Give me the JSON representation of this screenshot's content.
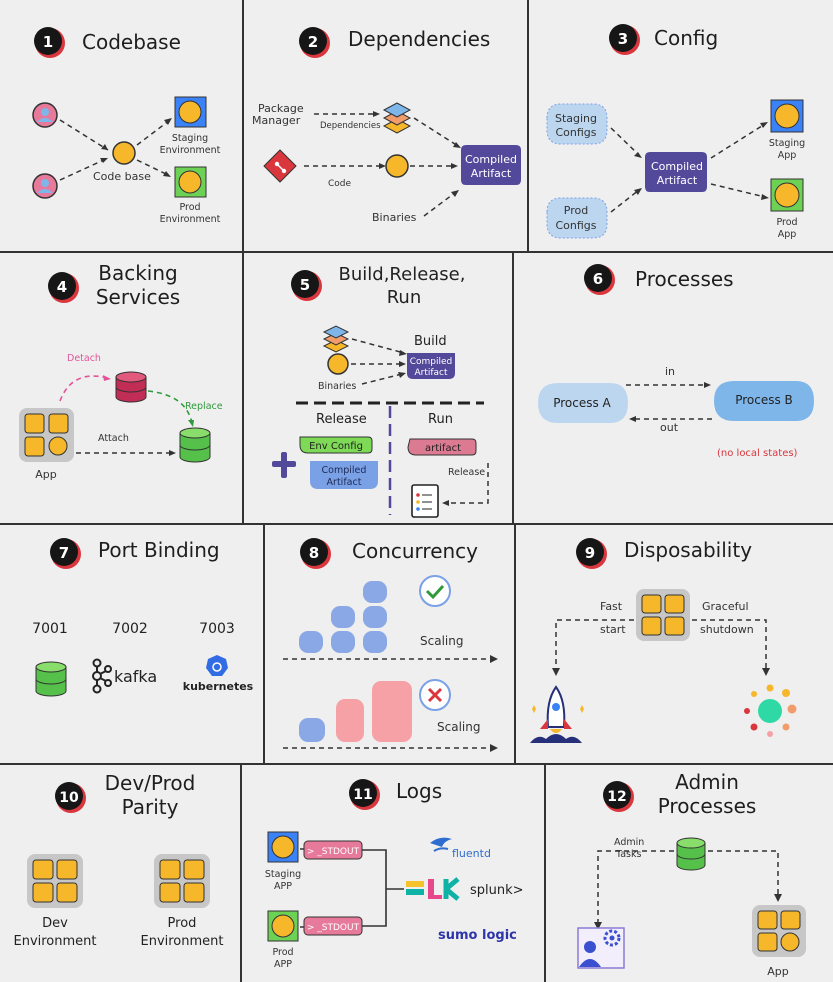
{
  "colors": {
    "background": "#efefef",
    "yellow": "#f6b72b",
    "blue_frame": "#3b82f6",
    "green_frame": "#6dd155",
    "artifact_purple": "#52499a",
    "config_blue": "#bcd6f0",
    "process_blue": "#7fb6ea",
    "error_red": "#d9363e",
    "stdout_pink": "#e77a9b",
    "bar_blue": "#8aa7e6",
    "bar_pink": "#f6a1a6",
    "env_green": "#7ed957",
    "artifact_pink": "#dc7a92",
    "light_blue": "#7aa0e6"
  },
  "panels": {
    "p1": {
      "number": "1",
      "title": "Codebase",
      "labels": {
        "code_base": "Code base",
        "staging_env": [
          "Staging",
          "Environment"
        ],
        "prod_env": [
          "Prod",
          "Environment"
        ]
      },
      "icons": [
        "user-icon",
        "git-icon",
        "staging-env-icon",
        "prod-env-icon"
      ]
    },
    "p2": {
      "number": "2",
      "title": "Dependencies",
      "labels": {
        "package_manager": [
          "Package",
          "Manager"
        ],
        "dependencies": "Dependencies",
        "code": "Code",
        "binaries": "Binaries",
        "compiled_artifact": [
          "Compiled",
          "Artifact"
        ]
      }
    },
    "p3": {
      "number": "3",
      "title": "Config",
      "labels": {
        "staging_configs": [
          "Staging",
          "Configs"
        ],
        "prod_configs": [
          "Prod",
          "Configs"
        ],
        "compiled_artifact": [
          "Compiled",
          "Artifact"
        ],
        "staging_app": [
          "Staging",
          "App"
        ],
        "prod_app": [
          "Prod",
          "App"
        ]
      }
    },
    "p4": {
      "number": "4",
      "title": [
        "Backing",
        "Services"
      ],
      "labels": {
        "detach": "Detach",
        "replace": "Replace",
        "attach": "Attach",
        "app": "App"
      }
    },
    "p5": {
      "number": "5",
      "title": [
        "Build,Release,",
        "Run"
      ],
      "labels": {
        "build": "Build",
        "compiled_artifact": [
          "Compiled",
          "Artifact"
        ],
        "binaries": "Binaries",
        "release": "Release",
        "run": "Run",
        "env_config": "Env Config",
        "artifact": "artifact",
        "release_small": "Release"
      }
    },
    "p6": {
      "number": "6",
      "title": "Processes",
      "labels": {
        "process_a": "Process A",
        "process_b": "Process B",
        "in": "in",
        "out": "out",
        "note": "(no local states)"
      }
    },
    "p7": {
      "number": "7",
      "title": "Port Binding",
      "labels": {
        "ports": [
          "7001",
          "7002",
          "7003"
        ],
        "kafka": "kafka",
        "kubernetes": "kubernetes"
      }
    },
    "p8": {
      "number": "8",
      "title": "Concurrency",
      "labels": {
        "scaling_top": "Scaling",
        "scaling_bottom": "Scaling"
      }
    },
    "p9": {
      "number": "9",
      "title": "Disposability",
      "labels": {
        "fast_start": [
          "Fast",
          "start"
        ],
        "graceful_shutdown": [
          "Graceful",
          "shutdown"
        ]
      }
    },
    "p10": {
      "number": "10",
      "title": [
        "Dev/Prod",
        "Parity"
      ],
      "labels": {
        "dev_env": [
          "Dev",
          "Environment"
        ],
        "prod_env": [
          "Prod",
          "Environment"
        ]
      }
    },
    "p11": {
      "number": "11",
      "title": "Logs",
      "labels": {
        "stdout": "> _STDOUT",
        "staging_app": [
          "Staging",
          "APP"
        ],
        "prod_app": [
          "Prod",
          "APP"
        ],
        "fluentd": "fluentd",
        "elk": "elk",
        "splunk": "splunk>",
        "sumo": "sumo logic"
      }
    },
    "p12": {
      "number": "12",
      "title": [
        "Admin",
        "Processes"
      ],
      "labels": {
        "admin_tasks": [
          "Admin",
          "Tasks"
        ],
        "app": "App"
      }
    }
  }
}
